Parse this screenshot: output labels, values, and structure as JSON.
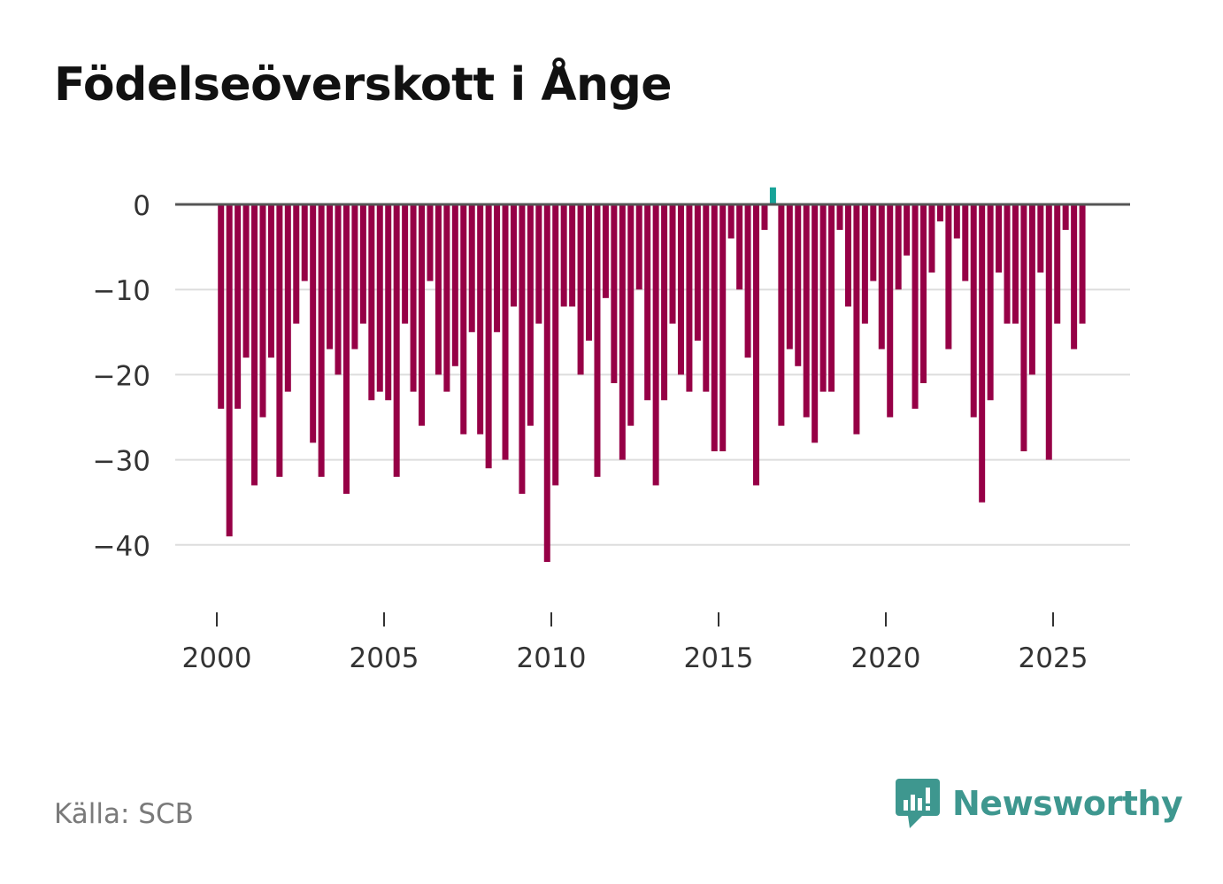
{
  "title": "Födelseöverskott i Ånge",
  "source": "Källa: SCB",
  "brand": "Newsworthy",
  "colors": {
    "negative": "#960046",
    "positive": "#17a398",
    "grid": "#dddddd",
    "zero_line": "#555555",
    "brand": "#3e978f"
  },
  "chart_data": {
    "type": "bar",
    "title": "Födelseöverskott i Ånge",
    "xlabel": "",
    "ylabel": "",
    "ylim": [
      -46,
      2
    ],
    "yticks": [
      0,
      -10,
      -20,
      -30,
      -40
    ],
    "ytick_labels": [
      "0",
      "−10",
      "−20",
      "−30",
      "−40"
    ],
    "xlim": [
      2000,
      2027.5
    ],
    "xticks": [
      2000,
      2005,
      2010,
      2015,
      2020,
      2025
    ],
    "xtick_labels": [
      "2000",
      "2005",
      "2010",
      "2015",
      "2020",
      "2025"
    ],
    "x_start": 2000.125,
    "x_step": 0.25,
    "series": [
      {
        "name": "Födelseöverskott per kvartal",
        "values": [
          -24,
          -39,
          -24,
          -18,
          -33,
          -25,
          -18,
          -32,
          -22,
          -14,
          -9,
          -28,
          -32,
          -17,
          -20,
          -34,
          -17,
          -14,
          -23,
          -22,
          -23,
          -32,
          -14,
          -22,
          -26,
          -9,
          -20,
          -22,
          -19,
          -27,
          -15,
          -27,
          -31,
          -15,
          -30,
          -12,
          -34,
          -26,
          -14,
          -42,
          -33,
          -12,
          -12,
          -20,
          -16,
          -32,
          -11,
          -21,
          -30,
          -26,
          -10,
          -23,
          -33,
          -23,
          -14,
          -20,
          -22,
          -16,
          -22,
          -29,
          -29,
          -4,
          -10,
          -18,
          -33,
          -3,
          2,
          -26,
          -17,
          -19,
          -25,
          -28,
          -22,
          -22,
          -3,
          -12,
          -27,
          -14,
          -9,
          -17,
          -25,
          -10,
          -6,
          -24,
          -21,
          -8,
          -2,
          -17,
          -4,
          -9,
          -25,
          -35,
          -23,
          -8,
          -14,
          -14,
          -29,
          -20,
          -8,
          -30,
          -14,
          -3,
          -17,
          -14
        ]
      }
    ]
  }
}
